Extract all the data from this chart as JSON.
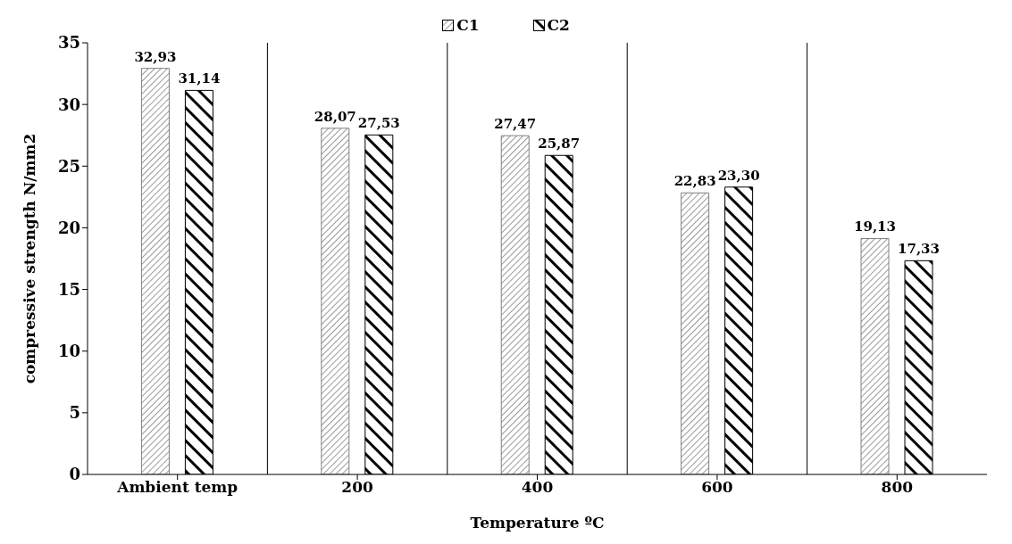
{
  "chart_data": {
    "type": "bar",
    "xlabel": "Temperature ºC",
    "ylabel": "compressive strength N/mm2",
    "categories": [
      "Ambient temp",
      "200",
      "400",
      "600",
      "800"
    ],
    "series": [
      {
        "name": "C1",
        "color": "#808080",
        "values": [
          32.93,
          28.07,
          27.47,
          22.83,
          19.13
        ],
        "value_labels": [
          "32,93",
          "28,07",
          "27,47",
          "22,83",
          "19,13"
        ]
      },
      {
        "name": "C2",
        "color": "#000000",
        "values": [
          31.14,
          27.53,
          25.87,
          23.3,
          17.33
        ],
        "value_labels": [
          "31,14",
          "27,53",
          "25,87",
          "23,30",
          "17,33"
        ]
      }
    ],
    "ylim": [
      0,
      35
    ],
    "yticks": [
      0,
      5,
      10,
      15,
      20,
      25,
      30,
      35
    ],
    "grid": "x",
    "legend": "top"
  }
}
